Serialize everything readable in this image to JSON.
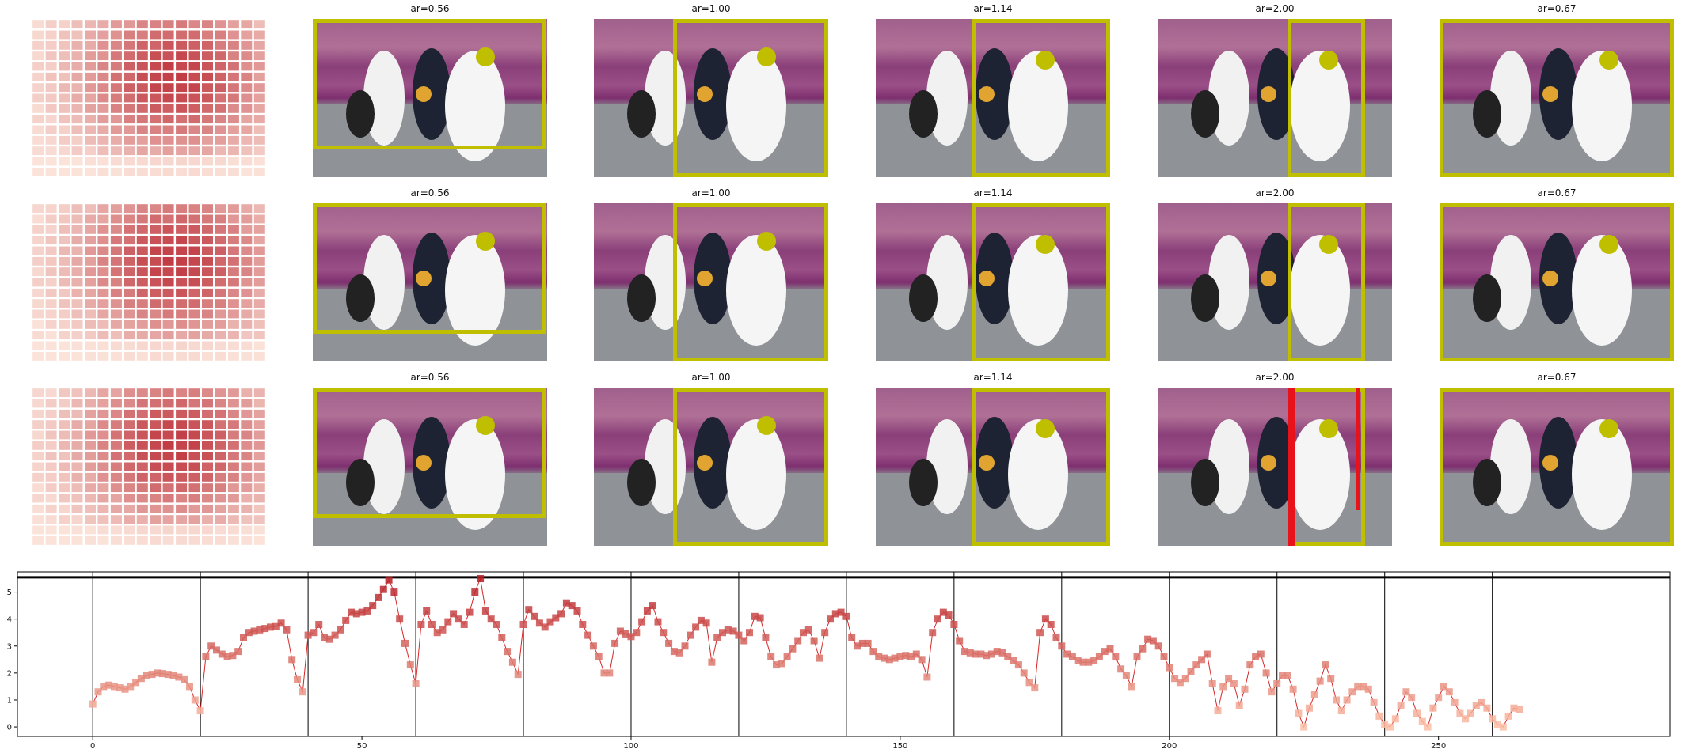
{
  "colors": {
    "box": "#bfbf00",
    "circle": "#bfbf00",
    "alert_box": "#e8121b",
    "heat_low": "#fde9df",
    "heat_high": "#b8232d",
    "line": "#d62728",
    "marker": "#e8453c"
  },
  "panel_rows": [
    {
      "titles": [
        "ar=0.56",
        "ar=1.00",
        "ar=1.14",
        "ar=2.00",
        "ar=0.67"
      ]
    },
    {
      "titles": [
        "ar=0.56",
        "ar=1.00",
        "ar=1.14",
        "ar=2.00",
        "ar=0.67"
      ]
    },
    {
      "titles": [
        "ar=0.56",
        "ar=1.00",
        "ar=1.14",
        "ar=2.00",
        "ar=0.67"
      ]
    }
  ],
  "chart_data": {
    "type": "line",
    "title": "",
    "xlabel": "",
    "ylabel": "",
    "xlim": [
      -14,
      293
    ],
    "ylim": [
      -0.35,
      5.75
    ],
    "xticks": [
      0,
      50,
      100,
      150,
      200,
      250
    ],
    "yticks": [
      0,
      1,
      2,
      3,
      4,
      5
    ],
    "reference_line_y": 5.55,
    "segment_boundaries": [
      0,
      20,
      40,
      60,
      80,
      100,
      120,
      140,
      160,
      180,
      200,
      220,
      240,
      260
    ],
    "series": [
      {
        "values": [
          0.85,
          1.3,
          1.5,
          1.55,
          1.5,
          1.45,
          1.4,
          1.5,
          1.65,
          1.8,
          1.9,
          1.95,
          2.0,
          1.98,
          1.95,
          1.9,
          1.85,
          1.75,
          1.5,
          1.0,
          0.6,
          2.6,
          3.0,
          2.85,
          2.7,
          2.6,
          2.65,
          2.8,
          3.3,
          3.5,
          3.55,
          3.6,
          3.65,
          3.7,
          3.72,
          3.85,
          3.6,
          2.5,
          1.75,
          1.3,
          3.4,
          3.5,
          3.8,
          3.3,
          3.25,
          3.4,
          3.6,
          3.95,
          4.25,
          4.2,
          4.25,
          4.3,
          4.5,
          4.8,
          5.1,
          5.45,
          5.0,
          4.0,
          3.1,
          2.3,
          1.6,
          3.8,
          4.3,
          3.8,
          3.5,
          3.6,
          3.9,
          4.2,
          4.0,
          3.8,
          4.25,
          5.0,
          5.5,
          4.3,
          4.0,
          3.8,
          3.3,
          2.8,
          2.4,
          1.95,
          3.8,
          4.35,
          4.1,
          3.85,
          3.7,
          3.9,
          4.05,
          4.2,
          4.6,
          4.5,
          4.3,
          3.8,
          3.4,
          3.0,
          2.6,
          2.0,
          2.0,
          3.1,
          3.55,
          3.45,
          3.35,
          3.5,
          3.9,
          4.3,
          4.5,
          3.9,
          3.5,
          3.1,
          2.8,
          2.75,
          3.0,
          3.4,
          3.7,
          3.95,
          3.85,
          2.4,
          3.3,
          3.5,
          3.6,
          3.55,
          3.4,
          3.2,
          3.5,
          4.1,
          4.05,
          3.3,
          2.6,
          2.3,
          2.35,
          2.6,
          2.9,
          3.2,
          3.5,
          3.6,
          3.2,
          2.55,
          3.5,
          4.0,
          4.2,
          4.25,
          4.1,
          3.3,
          3.0,
          3.1,
          3.1,
          2.8,
          2.6,
          2.55,
          2.5,
          2.55,
          2.6,
          2.65,
          2.6,
          2.7,
          2.5,
          1.85,
          3.5,
          4.0,
          4.25,
          4.15,
          3.8,
          3.2,
          2.8,
          2.75,
          2.7,
          2.7,
          2.65,
          2.7,
          2.8,
          2.75,
          2.6,
          2.45,
          2.3,
          2.0,
          1.65,
          1.45,
          3.5,
          4.0,
          3.8,
          3.3,
          3.0,
          2.7,
          2.6,
          2.45,
          2.4,
          2.4,
          2.45,
          2.6,
          2.8,
          2.9,
          2.6,
          2.15,
          1.9,
          1.5,
          2.6,
          2.9,
          3.25,
          3.2,
          3.0,
          2.6,
          2.2,
          1.8,
          1.65,
          1.8,
          2.05,
          2.3,
          2.5,
          2.7,
          1.6,
          0.6,
          1.5,
          1.8,
          1.6,
          0.8,
          1.4,
          2.3,
          2.6,
          2.7,
          2.0,
          1.3,
          1.6,
          1.9,
          1.9,
          1.4,
          0.5,
          0.0,
          0.7,
          1.2,
          1.7,
          2.3,
          1.8,
          1.0,
          0.6,
          1.0,
          1.3,
          1.5,
          1.5,
          1.4,
          0.9,
          0.4,
          0.1,
          0.0,
          0.3,
          0.8,
          1.3,
          1.1,
          0.5,
          0.2,
          0.0,
          0.7,
          1.1,
          1.5,
          1.3,
          0.9,
          0.5,
          0.3,
          0.5,
          0.8,
          0.9,
          0.7,
          0.3,
          0.1,
          0.0,
          0.4,
          0.7,
          0.65
        ]
      }
    ]
  }
}
